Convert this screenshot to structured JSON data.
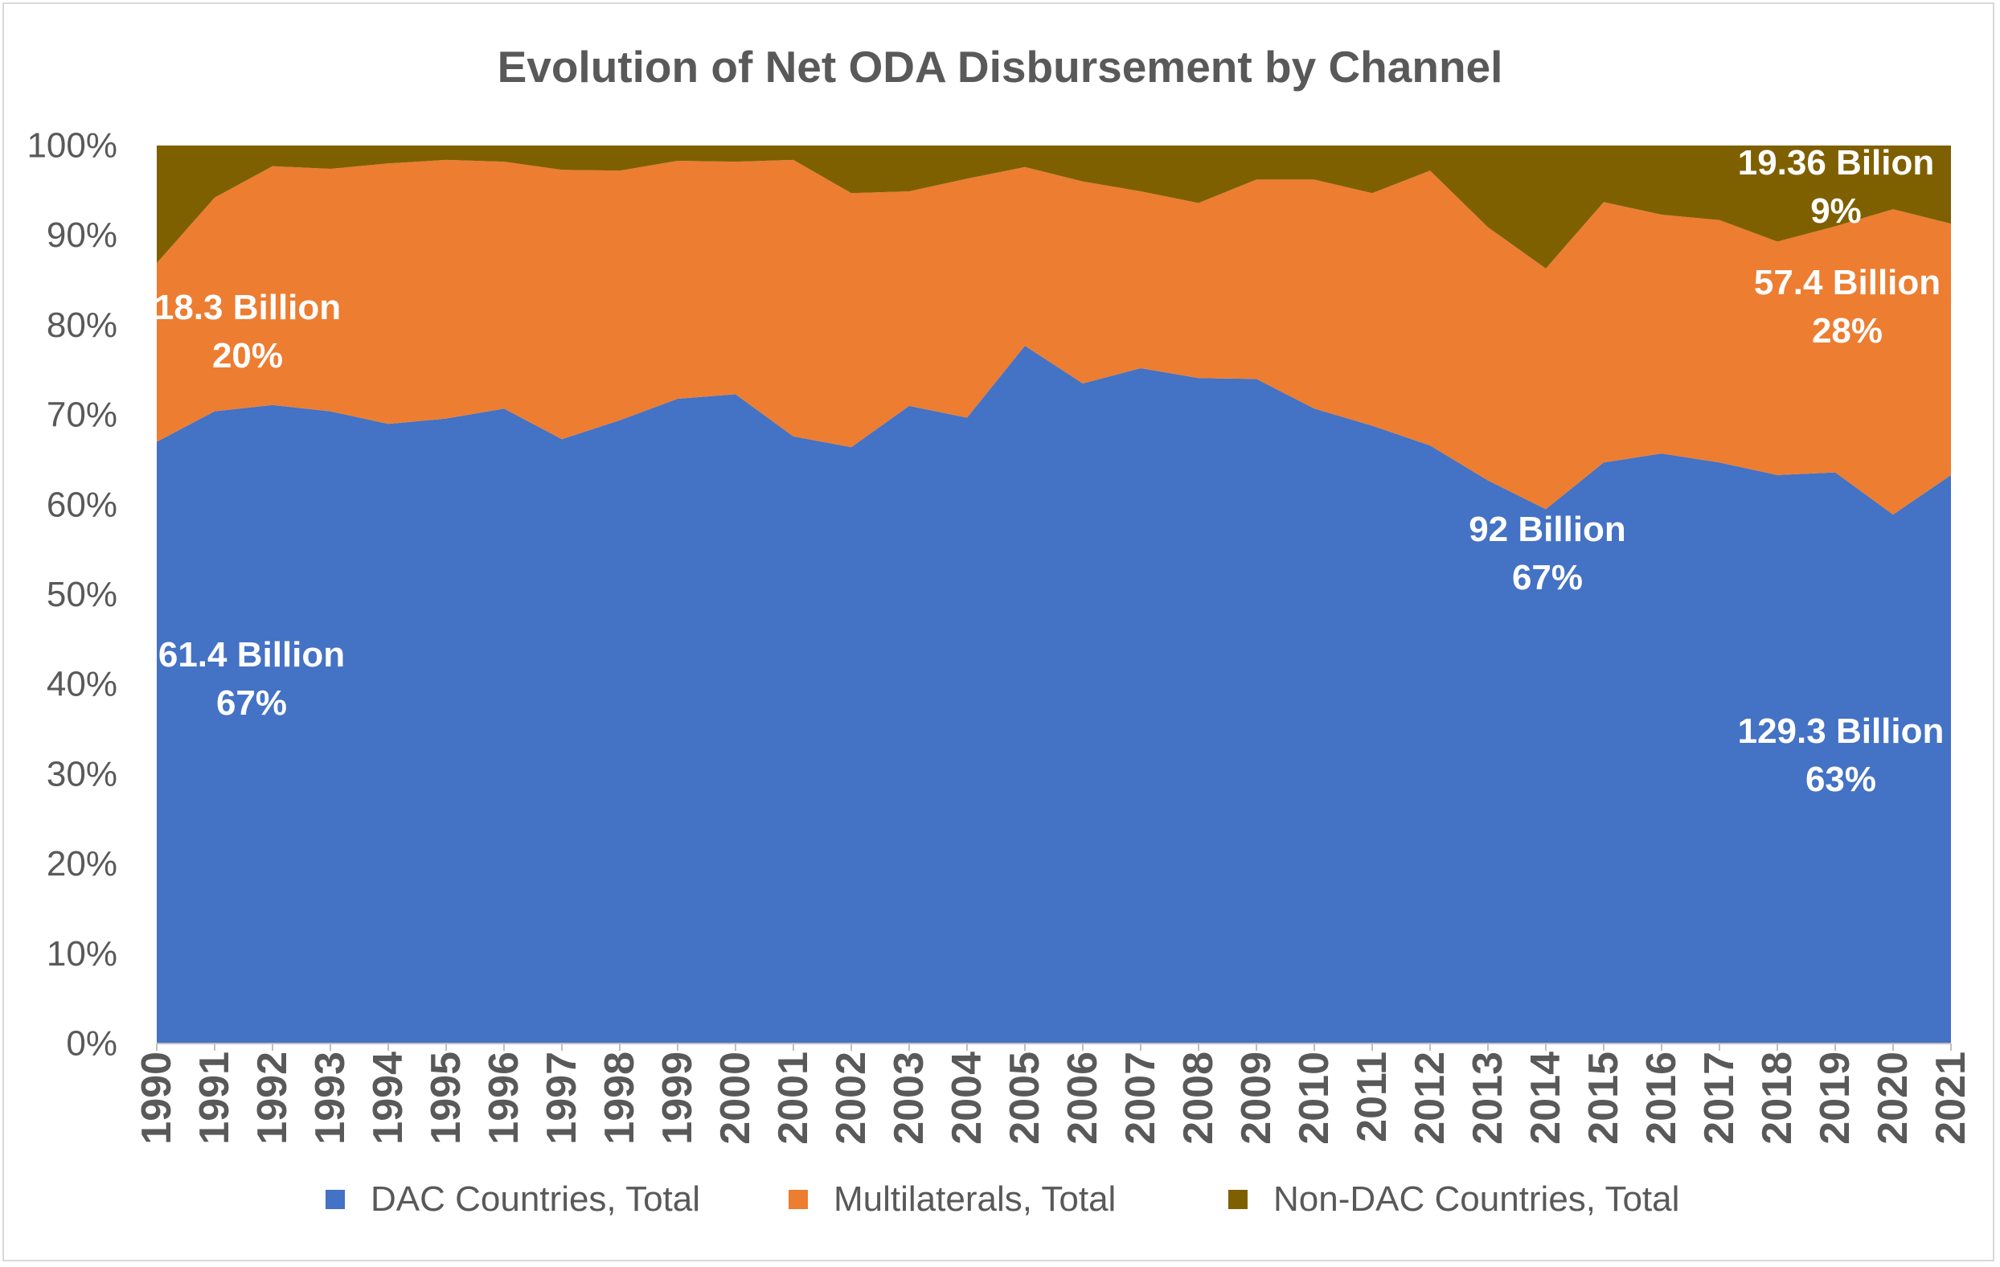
{
  "chart_data": {
    "type": "area",
    "stacking": "percent",
    "title": "Evolution of Net ODA Disbursement by Channel",
    "x": [
      1990,
      1991,
      1992,
      1993,
      1994,
      1995,
      1996,
      1997,
      1998,
      1999,
      2000,
      2001,
      2002,
      2003,
      2004,
      2005,
      2006,
      2007,
      2008,
      2009,
      2010,
      2011,
      2012,
      2013,
      2014,
      2015,
      2016,
      2017,
      2018,
      2019,
      2020,
      2021
    ],
    "yticks": [
      "0%",
      "10%",
      "20%",
      "30%",
      "40%",
      "50%",
      "60%",
      "70%",
      "80%",
      "90%",
      "100%"
    ],
    "ylim": [
      0,
      100
    ],
    "grid": false,
    "legend": "bottom",
    "series": [
      {
        "name": "DAC Countries, Total",
        "color": "#4472C4",
        "values": [
          67.0,
          70.4,
          71.1,
          70.4,
          69.0,
          69.6,
          70.7,
          67.3,
          69.4,
          71.8,
          72.3,
          67.6,
          66.4,
          71.0,
          69.7,
          77.7,
          73.5,
          75.2,
          74.1,
          74.0,
          70.7,
          68.8,
          66.6,
          62.7,
          59.5,
          64.7,
          65.7,
          64.7,
          63.3,
          63.6,
          58.9,
          63.3
        ]
      },
      {
        "name": "Multilaterals, Total",
        "color": "#ED7D31",
        "values": [
          19.9,
          23.8,
          26.6,
          27.0,
          29.0,
          28.8,
          27.5,
          30.0,
          27.8,
          26.5,
          25.9,
          30.8,
          28.3,
          23.9,
          26.6,
          19.9,
          22.5,
          19.7,
          19.5,
          22.2,
          25.5,
          25.9,
          30.6,
          28.2,
          26.8,
          29.0,
          26.6,
          27.0,
          26.0,
          27.4,
          34.0,
          28.0
        ]
      },
      {
        "name": "Non-DAC Countries, Total",
        "color": "#7F6000",
        "values": [
          13.1,
          5.8,
          2.3,
          2.6,
          2.0,
          1.6,
          1.8,
          2.7,
          2.8,
          1.7,
          1.8,
          1.6,
          5.3,
          5.1,
          3.7,
          2.4,
          4.0,
          5.1,
          6.4,
          3.8,
          3.8,
          5.3,
          2.8,
          9.1,
          13.7,
          6.3,
          7.7,
          8.3,
          10.7,
          9.0,
          7.1,
          8.7
        ]
      }
    ],
    "annotations": [
      {
        "lines": [
          "18.3 Billion",
          "20%"
        ]
      },
      {
        "lines": [
          "61.4 Billion",
          "67%"
        ]
      },
      {
        "lines": [
          "92 Billion",
          "67%"
        ]
      },
      {
        "lines": [
          "129.3 Billion",
          "63%"
        ]
      },
      {
        "lines": [
          "57.4 Billion",
          "28%"
        ]
      },
      {
        "lines": [
          "19.36 Bilion",
          "9%"
        ]
      }
    ]
  }
}
